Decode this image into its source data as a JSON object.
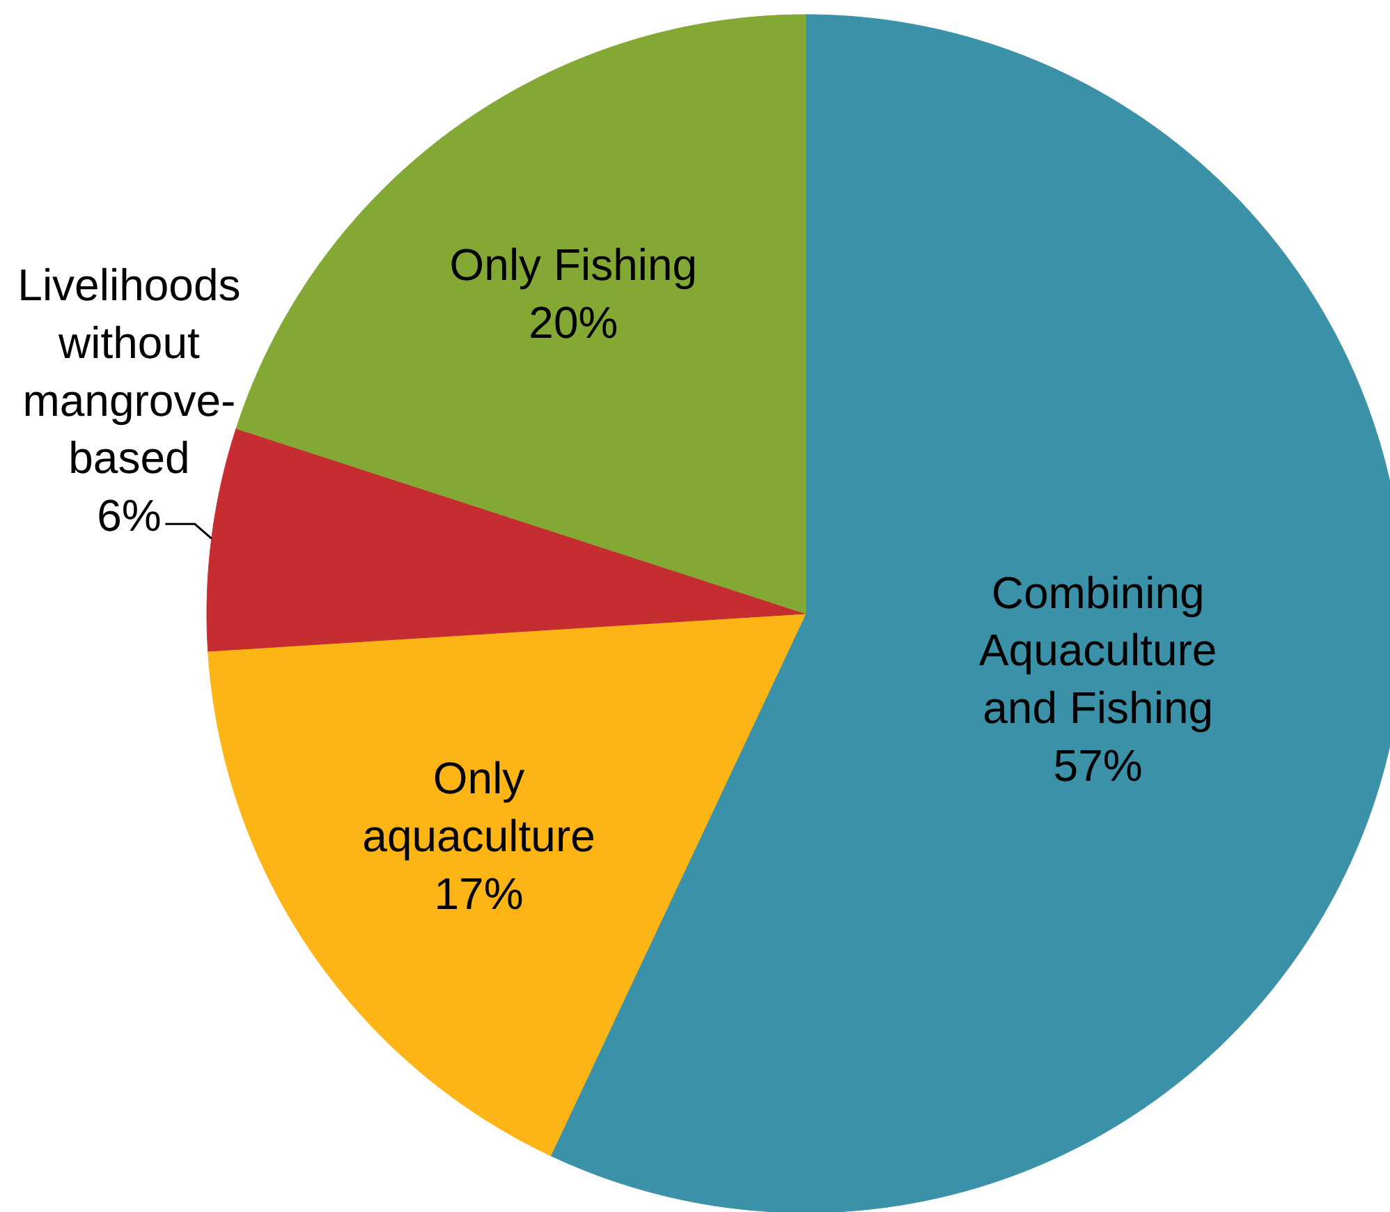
{
  "chart_data": {
    "type": "pie",
    "categories": [
      "Combining Aquaculture and Fishing",
      "Only aquaculture",
      "Livelihoods without mangrove-based",
      "Only Fishing"
    ],
    "values": [
      57,
      17,
      6,
      20
    ],
    "colors": [
      "#3a91a8",
      "#fdb515",
      "#c52d30",
      "#84a834"
    ],
    "value_labels": [
      "57%",
      "17%",
      "6%",
      "20%"
    ]
  }
}
